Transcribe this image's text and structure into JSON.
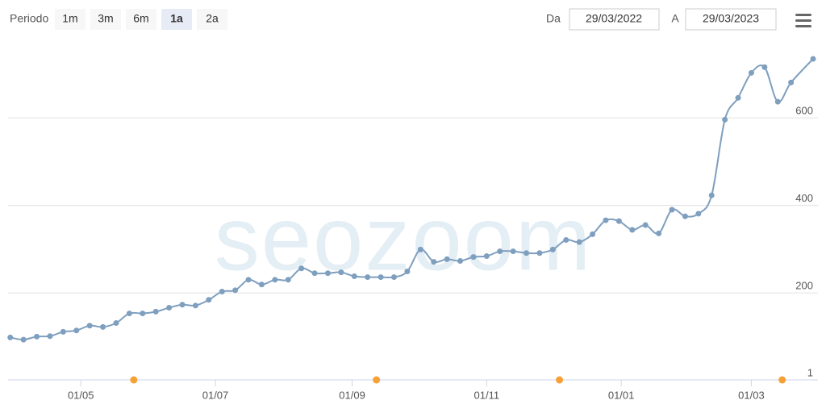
{
  "toolbar": {
    "period_label": "Periodo",
    "buttons": [
      {
        "label": "1m",
        "selected": false
      },
      {
        "label": "3m",
        "selected": false
      },
      {
        "label": "6m",
        "selected": false
      },
      {
        "label": "1a",
        "selected": true
      },
      {
        "label": "2a",
        "selected": false
      }
    ],
    "from_label": "Da",
    "from": "29/03/2022",
    "to_label": "A",
    "to": "29/03/2023"
  },
  "chart_data": {
    "type": "line",
    "watermark": "seozoom",
    "color": "#7f9fbf",
    "event_color": "#f7a035",
    "x": [
      "2022-03-30",
      "2022-04-05",
      "2022-04-11",
      "2022-04-17",
      "2022-04-23",
      "2022-04-29",
      "2022-05-05",
      "2022-05-11",
      "2022-05-17",
      "2022-05-23",
      "2022-05-29",
      "2022-06-04",
      "2022-06-10",
      "2022-06-16",
      "2022-06-22",
      "2022-06-28",
      "2022-07-04",
      "2022-07-10",
      "2022-07-16",
      "2022-07-22",
      "2022-07-28",
      "2022-08-03",
      "2022-08-09",
      "2022-08-15",
      "2022-08-21",
      "2022-08-27",
      "2022-09-02",
      "2022-09-08",
      "2022-09-14",
      "2022-09-20",
      "2022-09-26",
      "2022-10-02",
      "2022-10-08",
      "2022-10-14",
      "2022-10-20",
      "2022-10-26",
      "2022-11-01",
      "2022-11-07",
      "2022-11-13",
      "2022-11-19",
      "2022-11-25",
      "2022-12-01",
      "2022-12-07",
      "2022-12-13",
      "2022-12-19",
      "2022-12-25",
      "2022-12-31",
      "2023-01-06",
      "2023-01-12",
      "2023-01-18",
      "2023-01-24",
      "2023-01-30",
      "2023-02-05",
      "2023-02-11",
      "2023-02-17",
      "2023-02-23",
      "2023-03-01",
      "2023-03-07",
      "2023-03-13",
      "2023-03-19",
      "2023-03-29"
    ],
    "values": [
      98,
      93,
      100,
      101,
      111,
      114,
      125,
      122,
      131,
      153,
      153,
      157,
      166,
      173,
      171,
      184,
      203,
      206,
      230,
      219,
      230,
      230,
      256,
      245,
      245,
      247,
      238,
      236,
      236,
      236,
      249,
      299,
      271,
      277,
      273,
      282,
      284,
      295,
      295,
      291,
      291,
      299,
      321,
      316,
      334,
      366,
      364,
      344,
      355,
      336,
      390,
      375,
      381,
      423,
      596,
      646,
      703,
      716,
      637,
      681,
      735
    ],
    "events": [
      "2022-05-25",
      "2022-09-12",
      "2022-12-04",
      "2023-03-15"
    ],
    "xlim": [
      "2022-03-29",
      "2023-03-29"
    ],
    "xticks": [
      {
        "value": "2022-05-01",
        "label": "01/05"
      },
      {
        "value": "2022-07-01",
        "label": "01/07"
      },
      {
        "value": "2022-09-01",
        "label": "01/09"
      },
      {
        "value": "2022-11-01",
        "label": "01/11"
      },
      {
        "value": "2023-01-01",
        "label": "01/01"
      },
      {
        "value": "2023-03-01",
        "label": "01/03"
      }
    ],
    "ylim": [
      1,
      770
    ],
    "yticks": [
      1,
      200,
      400,
      600
    ],
    "grid": true
  }
}
